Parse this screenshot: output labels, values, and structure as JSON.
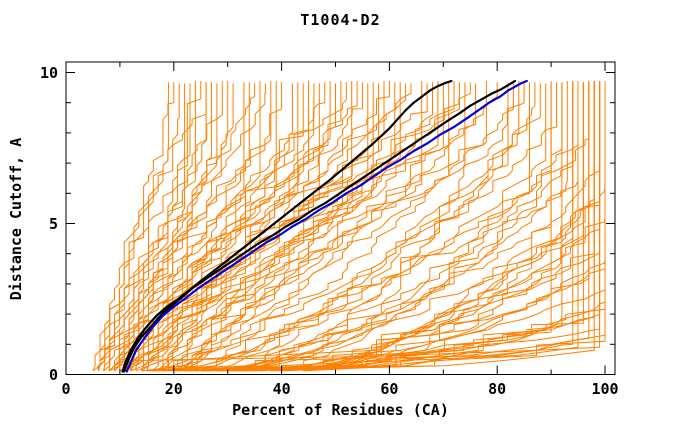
{
  "page": {
    "background": "#ffffff"
  },
  "chart_data": {
    "type": "line",
    "title": "T1004-D2",
    "xlabel": "Percent of Residues (CA)",
    "ylabel": "Distance Cutoff, A",
    "xlim": [
      0,
      101.9
    ],
    "ylim": [
      0,
      10.35
    ],
    "grid": false,
    "legend": null,
    "axis_color": "#000000",
    "x_major_ticks": [
      0,
      20,
      40,
      60,
      80,
      100
    ],
    "x_minor_ticks": [
      10,
      30,
      50,
      70,
      90
    ],
    "x_tick_labels": [
      "0",
      "20",
      "40",
      "60",
      "80",
      "100"
    ],
    "y_major_ticks": [
      0,
      5,
      10
    ],
    "y_minor_ticks": [
      1,
      2,
      3,
      4,
      6,
      7,
      8,
      9
    ],
    "y_tick_labels": [
      "0",
      "5",
      "10"
    ],
    "curve_top_cutoff": 9.72,
    "highlight_series": [
      {
        "name": "model-curve-black-1",
        "color": "#000000",
        "stroke_width": 2.2,
        "points": [
          [
            10.8,
            0.1
          ],
          [
            11.5,
            0.45
          ],
          [
            12.5,
            0.85
          ],
          [
            14,
            1.25
          ],
          [
            15.8,
            1.6
          ],
          [
            17.8,
            2.0
          ],
          [
            19.8,
            2.3
          ],
          [
            21.8,
            2.6
          ],
          [
            24,
            2.95
          ],
          [
            26.5,
            3.3
          ],
          [
            29,
            3.65
          ],
          [
            31.5,
            4.0
          ],
          [
            34,
            4.35
          ],
          [
            36.5,
            4.7
          ],
          [
            39,
            5.05
          ],
          [
            41.5,
            5.4
          ],
          [
            44,
            5.75
          ],
          [
            46.5,
            6.1
          ],
          [
            49,
            6.45
          ],
          [
            51,
            6.75
          ],
          [
            53,
            7.05
          ],
          [
            55,
            7.35
          ],
          [
            57,
            7.65
          ],
          [
            58.5,
            7.9
          ],
          [
            60,
            8.15
          ],
          [
            61,
            8.35
          ],
          [
            62,
            8.55
          ],
          [
            63,
            8.75
          ],
          [
            64.5,
            9.0
          ],
          [
            66,
            9.2
          ],
          [
            67.5,
            9.4
          ],
          [
            69,
            9.55
          ],
          [
            70.3,
            9.65
          ],
          [
            71.5,
            9.72
          ]
        ]
      },
      {
        "name": "model-curve-black-2",
        "color": "#000000",
        "stroke_width": 2.2,
        "points": [
          [
            10.5,
            0.1
          ],
          [
            11,
            0.4
          ],
          [
            12,
            0.8
          ],
          [
            13.3,
            1.2
          ],
          [
            14.8,
            1.55
          ],
          [
            16.8,
            1.95
          ],
          [
            18.8,
            2.25
          ],
          [
            20.8,
            2.5
          ],
          [
            23.3,
            2.85
          ],
          [
            25.8,
            3.15
          ],
          [
            28.3,
            3.45
          ],
          [
            30.8,
            3.75
          ],
          [
            33.3,
            4.05
          ],
          [
            35.8,
            4.35
          ],
          [
            38.3,
            4.6
          ],
          [
            40.8,
            4.9
          ],
          [
            43.3,
            5.15
          ],
          [
            45.8,
            5.45
          ],
          [
            48.3,
            5.7
          ],
          [
            50.8,
            6.0
          ],
          [
            53.3,
            6.3
          ],
          [
            55.8,
            6.6
          ],
          [
            58.3,
            6.9
          ],
          [
            60.8,
            7.2
          ],
          [
            63.3,
            7.5
          ],
          [
            65.8,
            7.8
          ],
          [
            68.3,
            8.1
          ],
          [
            70.8,
            8.4
          ],
          [
            73,
            8.65
          ],
          [
            75,
            8.9
          ],
          [
            77,
            9.1
          ],
          [
            79,
            9.3
          ],
          [
            80.8,
            9.45
          ],
          [
            82,
            9.58
          ],
          [
            83.3,
            9.72
          ]
        ]
      },
      {
        "name": "model-curve-blue",
        "color": "#0000dd",
        "stroke_width": 2.2,
        "points": [
          [
            11.3,
            0.1
          ],
          [
            12,
            0.4
          ],
          [
            13,
            0.8
          ],
          [
            14.5,
            1.2
          ],
          [
            16,
            1.55
          ],
          [
            18,
            1.95
          ],
          [
            20,
            2.25
          ],
          [
            22,
            2.5
          ],
          [
            24.5,
            2.85
          ],
          [
            27,
            3.15
          ],
          [
            29.5,
            3.45
          ],
          [
            32,
            3.75
          ],
          [
            34.5,
            4.05
          ],
          [
            37,
            4.35
          ],
          [
            39.5,
            4.6
          ],
          [
            42,
            4.9
          ],
          [
            44.5,
            5.15
          ],
          [
            47,
            5.45
          ],
          [
            49.5,
            5.7
          ],
          [
            52,
            6.0
          ],
          [
            54.5,
            6.25
          ],
          [
            57,
            6.55
          ],
          [
            59.5,
            6.85
          ],
          [
            62,
            7.1
          ],
          [
            64.5,
            7.4
          ],
          [
            67,
            7.65
          ],
          [
            69.5,
            7.95
          ],
          [
            72,
            8.2
          ],
          [
            74.5,
            8.5
          ],
          [
            76.5,
            8.75
          ],
          [
            78.5,
            9.0
          ],
          [
            80.5,
            9.2
          ],
          [
            82,
            9.4
          ],
          [
            83.5,
            9.55
          ],
          [
            84.5,
            9.65
          ],
          [
            85.5,
            9.72
          ]
        ]
      }
    ],
    "ensemble": {
      "name": "predicted-model-curves",
      "color": "#ff8000",
      "stroke_width": 1,
      "y_step": 0.17,
      "x_quantum": 0.9,
      "jitter": 2.4,
      "hold_probability": 0.25,
      "curves": [
        [
          5,
          19,
          1.3,
          7.5,
          1
        ],
        [
          6,
          21,
          1.1,
          8.5,
          2
        ],
        [
          6,
          24,
          1.4,
          6.5,
          3
        ],
        [
          7,
          26,
          1.0,
          9.0,
          4
        ],
        [
          7,
          28,
          1.2,
          7.0,
          5
        ],
        [
          8,
          30,
          0.9,
          8.0,
          6
        ],
        [
          8,
          33,
          1.3,
          6.0,
          7
        ],
        [
          9,
          35,
          1.1,
          9.2,
          8
        ],
        [
          9,
          38,
          1.5,
          7.8,
          9
        ],
        [
          10,
          40,
          1.0,
          8.8,
          10
        ],
        [
          6,
          22,
          1.2,
          5.5,
          11
        ],
        [
          7,
          25,
          1.4,
          9.4,
          12
        ],
        [
          8,
          27,
          1.0,
          7.2,
          13
        ],
        [
          9,
          31,
          1.2,
          8.2,
          14
        ],
        [
          10,
          36,
          1.35,
          6.8,
          15
        ],
        [
          5,
          20,
          1.05,
          9.0,
          16
        ],
        [
          6,
          23,
          1.25,
          7.6,
          17
        ],
        [
          7,
          29,
          1.15,
          8.6,
          18
        ],
        [
          8,
          34,
          1.45,
          7.1,
          19
        ],
        [
          9,
          37,
          1.05,
          9.3,
          20
        ],
        [
          10,
          39,
          1.25,
          6.2,
          21
        ],
        [
          6,
          26,
          0.95,
          8.4,
          22
        ],
        [
          8,
          42,
          1.1,
          8.0,
          23
        ],
        [
          9,
          45,
          1.25,
          7.0,
          24
        ],
        [
          10,
          48,
          0.95,
          9.0,
          25
        ],
        [
          11,
          50,
          1.15,
          8.2,
          26
        ],
        [
          12,
          53,
          1.3,
          6.5,
          27
        ],
        [
          13,
          55,
          1.0,
          8.8,
          28
        ],
        [
          14,
          58,
          1.2,
          7.4,
          29
        ],
        [
          15,
          60,
          1.05,
          9.2,
          30
        ],
        [
          9,
          43,
          1.35,
          6.0,
          31
        ],
        [
          10,
          46,
          1.1,
          8.5,
          32
        ],
        [
          11,
          49,
          0.9,
          7.8,
          33
        ],
        [
          12,
          52,
          1.2,
          9.1,
          34
        ],
        [
          13,
          56,
          1.4,
          6.8,
          35
        ],
        [
          14,
          59,
          1.0,
          8.0,
          36
        ],
        [
          15,
          62,
          1.15,
          7.2,
          37
        ],
        [
          16,
          64,
          1.3,
          9.3,
          38
        ],
        [
          17,
          66,
          0.95,
          6.3,
          39
        ],
        [
          18,
          68,
          1.1,
          8.6,
          40
        ],
        [
          19,
          70,
          1.25,
          7.5,
          41
        ],
        [
          20,
          72,
          1.0,
          9.0,
          42
        ],
        [
          21,
          74,
          1.2,
          6.9,
          43
        ],
        [
          22,
          76,
          1.05,
          8.3,
          44
        ],
        [
          23,
          78,
          1.3,
          7.7,
          45
        ],
        [
          24,
          80,
          0.9,
          9.2,
          46
        ],
        [
          12,
          47,
          1.15,
          5.8,
          47
        ],
        [
          14,
          54,
          1.25,
          8.9,
          48
        ],
        [
          16,
          61,
          1.05,
          7.3,
          49
        ],
        [
          18,
          67,
          1.35,
          8.7,
          50
        ],
        [
          20,
          71,
          0.95,
          6.6,
          51
        ],
        [
          22,
          75,
          1.15,
          9.4,
          52
        ],
        [
          11,
          44,
          1.2,
          7.9,
          53
        ],
        [
          13,
          51,
          1.0,
          8.4,
          54
        ],
        [
          15,
          57,
          1.3,
          6.1,
          55
        ],
        [
          17,
          63,
          1.1,
          9.1,
          56
        ],
        [
          19,
          69,
          1.25,
          7.6,
          57
        ],
        [
          21,
          73,
          1.05,
          8.8,
          58
        ],
        [
          14,
          82,
          0.7,
          7.0,
          59
        ],
        [
          16,
          84,
          0.6,
          8.0,
          60
        ],
        [
          18,
          86,
          0.75,
          6.0,
          61
        ],
        [
          20,
          88,
          0.55,
          8.5,
          62
        ],
        [
          22,
          90,
          0.65,
          5.0,
          63
        ],
        [
          24,
          92,
          0.5,
          7.5,
          64
        ],
        [
          26,
          94,
          0.7,
          4.5,
          65
        ],
        [
          28,
          95,
          0.6,
          6.5,
          66
        ],
        [
          30,
          96,
          0.45,
          5.5,
          67
        ],
        [
          32,
          97,
          0.55,
          7.8,
          68
        ],
        [
          34,
          98,
          0.65,
          4.0,
          69
        ],
        [
          36,
          99,
          0.5,
          6.8,
          70
        ],
        [
          38,
          100,
          0.6,
          3.5,
          71
        ],
        [
          40,
          100,
          0.45,
          5.2,
          72
        ],
        [
          25,
          100,
          0.55,
          2.8,
          73
        ],
        [
          27,
          99,
          0.5,
          4.8,
          74
        ],
        [
          29,
          100,
          0.4,
          6.2,
          75
        ],
        [
          31,
          100,
          0.5,
          2.2,
          76
        ],
        [
          33,
          100,
          0.45,
          3.8,
          77
        ],
        [
          35,
          99,
          0.55,
          5.6,
          78
        ],
        [
          15,
          83,
          0.65,
          8.8,
          79
        ],
        [
          19,
          89,
          0.6,
          7.2,
          80
        ],
        [
          23,
          93,
          0.5,
          6.4,
          81
        ],
        [
          21,
          91,
          0.7,
          8.2,
          82
        ],
        [
          37,
          98,
          0.55,
          5.8,
          83
        ],
        [
          39,
          99,
          0.6,
          4.2,
          84
        ],
        [
          26,
          95,
          0.65,
          7.6,
          85
        ],
        [
          17,
          85,
          0.55,
          9.0,
          86
        ],
        [
          28,
          97,
          0.5,
          3.2,
          87
        ],
        [
          30,
          87,
          0.6,
          8.9,
          88
        ],
        [
          34,
          96,
          0.5,
          4.6,
          89
        ],
        [
          24,
          94,
          0.6,
          6.9,
          90
        ],
        [
          15,
          97,
          0.5,
          1.2,
          91
        ],
        [
          20,
          99,
          0.55,
          1.5,
          92
        ],
        [
          18,
          95,
          0.5,
          0.9,
          93
        ],
        [
          25,
          100,
          0.6,
          1.1,
          94
        ],
        [
          12,
          90,
          0.5,
          1.4,
          95
        ],
        [
          30,
          98,
          0.5,
          0.8,
          96
        ],
        [
          22,
          96,
          0.45,
          1.7,
          97
        ],
        [
          35,
          100,
          0.5,
          1.3,
          98
        ],
        [
          28,
          94,
          0.55,
          1.0,
          99
        ],
        [
          40,
          99,
          0.5,
          2.0,
          100
        ],
        [
          16,
          92,
          0.5,
          1.6,
          101
        ],
        [
          32,
          99,
          0.55,
          0.9,
          102
        ],
        [
          26,
          98,
          0.5,
          1.9,
          103
        ],
        [
          44,
          100,
          0.5,
          2.4,
          104
        ]
      ]
    }
  }
}
